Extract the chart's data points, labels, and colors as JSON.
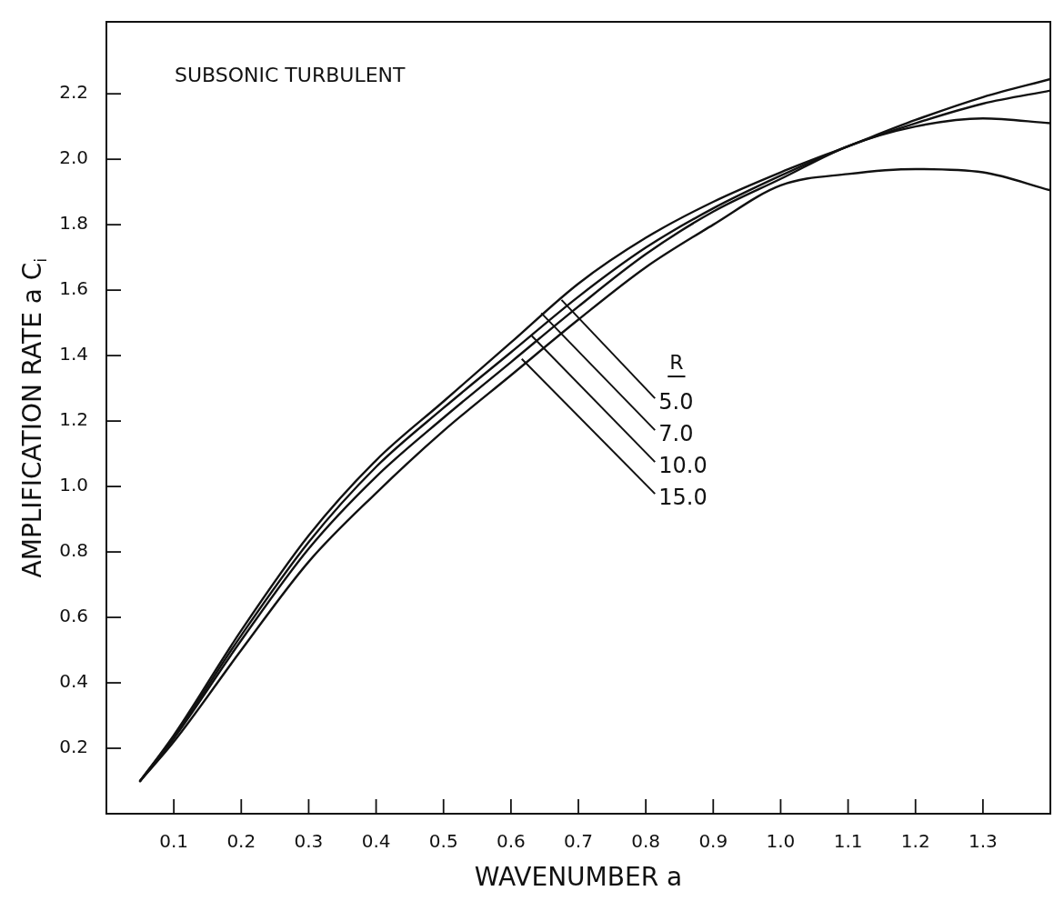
{
  "chart_data": {
    "type": "line",
    "title": "SUBSONIC TURBULENT",
    "xlabel": "WAVENUMBER a",
    "ylabel": "AMPLIFICATION RATE a C$_{i}$",
    "legend_title": "R",
    "legend": false,
    "marker": "none",
    "line_style": "solid",
    "grid": false,
    "x": [
      0.05,
      0.1,
      0.2,
      0.3,
      0.4,
      0.5,
      0.6,
      0.7,
      0.8,
      0.9,
      1.0,
      1.1,
      1.2,
      1.3,
      1.4
    ],
    "series": [
      {
        "color": "#111111",
        "values": [
          0.1,
          0.24,
          0.56,
          0.85,
          1.08,
          1.26,
          1.44,
          1.62,
          1.76,
          1.87,
          1.96,
          2.04,
          2.12,
          2.19,
          2.245
        ]
      },
      {
        "color": "#111111",
        "values": [
          0.1,
          0.235,
          0.545,
          0.83,
          1.06,
          1.24,
          1.41,
          1.58,
          1.73,
          1.85,
          1.95,
          2.04,
          2.11,
          2.17,
          2.21
        ]
      },
      {
        "color": "#111111",
        "values": [
          0.1,
          0.23,
          0.53,
          0.81,
          1.03,
          1.21,
          1.38,
          1.55,
          1.71,
          1.84,
          1.94,
          2.04,
          2.1,
          2.125,
          2.11
        ]
      },
      {
        "color": "#111111",
        "values": [
          0.1,
          0.22,
          0.5,
          0.77,
          0.98,
          1.17,
          1.34,
          1.51,
          1.67,
          1.8,
          1.92,
          1.955,
          1.97,
          1.96,
          1.905
        ]
      }
    ],
    "annotations": [
      {
        "text": "5.0",
        "x": 0.675,
        "y": 1.57
      },
      {
        "text": "7.0",
        "x": 0.645,
        "y": 1.53
      },
      {
        "text": "10.0",
        "x": 0.631,
        "y": 1.46
      },
      {
        "text": "15.0",
        "x": 0.616,
        "y": 1.39
      }
    ],
    "xlim": [
      0,
      1.4
    ],
    "ylim": [
      0,
      2.42
    ],
    "xticks": [
      {
        "value": 0.1,
        "label": "0.1"
      },
      {
        "value": 0.2,
        "label": "0.2"
      },
      {
        "value": 0.3,
        "label": "0.3"
      },
      {
        "value": 0.4,
        "label": "0.4"
      },
      {
        "value": 0.5,
        "label": "0.5"
      },
      {
        "value": 0.6,
        "label": "0.6"
      },
      {
        "value": 0.7,
        "label": "0.7"
      },
      {
        "value": 0.8,
        "label": "0.8"
      },
      {
        "value": 0.9,
        "label": "0.9"
      },
      {
        "value": 1.0,
        "label": "1.0"
      },
      {
        "value": 1.1,
        "label": "1.1"
      },
      {
        "value": 1.2,
        "label": "1.2"
      },
      {
        "value": 1.3,
        "label": "1.3"
      }
    ],
    "yticks": [
      {
        "value": 0.2,
        "label": "0.2"
      },
      {
        "value": 0.4,
        "label": "0.4"
      },
      {
        "value": 0.6,
        "label": "0.6"
      },
      {
        "value": 0.8,
        "label": "0.8"
      },
      {
        "value": 1.0,
        "label": "1.0"
      },
      {
        "value": 1.2,
        "label": "1.2"
      },
      {
        "value": 1.4,
        "label": "1.4"
      },
      {
        "value": 1.6,
        "label": "1.6"
      },
      {
        "value": 1.8,
        "label": "1.8"
      },
      {
        "value": 2.0,
        "label": "2.0"
      },
      {
        "value": 2.2,
        "label": "2.2"
      }
    ]
  }
}
